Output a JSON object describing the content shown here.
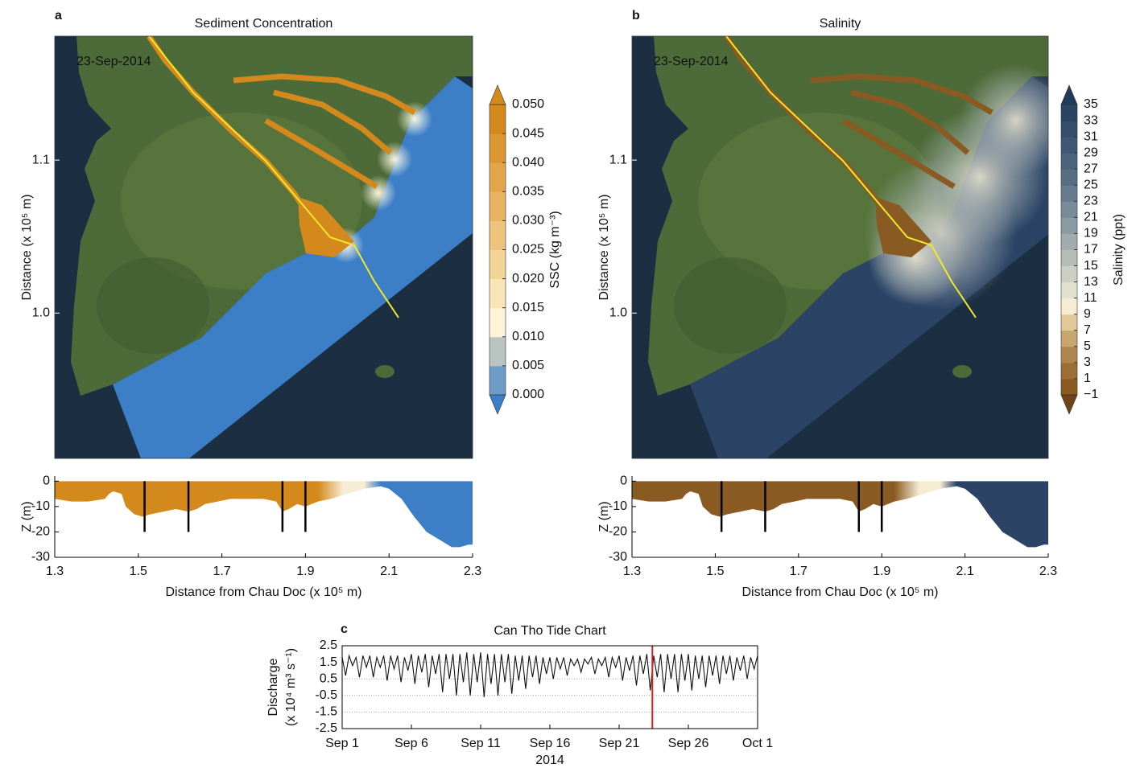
{
  "chart_data": [
    {
      "type": "map",
      "panel": "a",
      "title": "Sediment Concentration",
      "annotation": "23-Sep-2014",
      "ylabel": "Distance (x 10⁵ m)",
      "ylim": [
        0.905,
        1.181
      ],
      "yticks": [
        {
          "value": 1,
          "label": "1.0"
        },
        1.1
      ],
      "water_color": "#3d7fc7",
      "river_color": "#d4891c",
      "colorbar": {
        "label": "SSC (kg m⁻³)",
        "lim": [
          0,
          0.05
        ],
        "ticks": [
          {
            "value": 0,
            "label": "0.000"
          },
          {
            "value": 0.005,
            "label": "0.005"
          },
          {
            "value": 0.01,
            "label": "0.010"
          },
          {
            "value": 0.015,
            "label": "0.015"
          },
          {
            "value": 0.02,
            "label": "0.020"
          },
          {
            "value": 0.025,
            "label": "0.025"
          },
          {
            "value": 0.03,
            "label": "0.030"
          },
          {
            "value": 0.035,
            "label": "0.035"
          },
          {
            "value": 0.04,
            "label": "0.040"
          },
          {
            "value": 0.045,
            "label": "0.045"
          },
          {
            "value": 0.05,
            "label": "0.050"
          }
        ],
        "colors": [
          "#6e9cc9",
          "#b9c4c0",
          "#fdf3d8",
          "#f9e4b5",
          "#f3d497",
          "#eec47c",
          "#e8b460",
          "#e2a548",
          "#dc9632",
          "#d4891c"
        ],
        "extend_colors": [
          "#3d7fc7",
          "#d4891c"
        ]
      }
    },
    {
      "type": "map",
      "panel": "b",
      "title": "Salinity",
      "annotation": "23-Sep-2014",
      "ylabel": "Distance (x 10⁵ m)",
      "ylim": [
        0.905,
        1.181
      ],
      "yticks": [
        {
          "value": 1,
          "label": "1.0"
        },
        1.1
      ],
      "water_color": "#2b4466",
      "river_color": "#8a5a23",
      "colorbar": {
        "label": "Salinity (ppt)",
        "lim": [
          -1,
          35
        ],
        "ticks": [
          {
            "value": -1,
            "label": "−1"
          },
          1,
          3,
          5,
          7,
          9,
          11,
          13,
          15,
          17,
          19,
          21,
          23,
          25,
          27,
          29,
          31,
          33,
          35
        ],
        "colors": [
          "#8a5a23",
          "#9c6d35",
          "#b08650",
          "#c9a56f",
          "#e3c99a",
          "#f6ecd2",
          "#e2e0cf",
          "#cccfc4",
          "#b6bdb8",
          "#a0acad",
          "#8b9ba3",
          "#788b98",
          "#677c8e",
          "#576e84",
          "#4a627b",
          "#3e5773",
          "#334d6b",
          "#2a4464"
        ],
        "extend_colors": [
          "#6e4418",
          "#213a5a"
        ]
      }
    },
    {
      "type": "area",
      "xlabel": "Distance from Chau Doc (x 10⁵ m)",
      "ylabel": "Z (m)",
      "x": [
        1.3,
        1.34,
        1.38,
        1.42,
        1.43,
        1.44,
        1.46,
        1.47,
        1.49,
        1.51,
        1.53,
        1.56,
        1.59,
        1.62,
        1.64,
        1.66,
        1.69,
        1.72,
        1.76,
        1.8,
        1.83,
        1.845,
        1.86,
        1.88,
        1.9,
        1.93,
        1.96,
        2.0,
        2.04,
        2.08,
        2.1,
        2.13,
        2.16,
        2.19,
        2.22,
        2.25,
        2.27,
        2.29,
        2.3
      ],
      "values": [
        -7,
        -8,
        -8,
        -7,
        -5,
        -4,
        -5,
        -10,
        -13,
        -14,
        -13,
        -12,
        -11,
        -12,
        -11,
        -9,
        -8,
        -7,
        -7,
        -7,
        -8,
        -12,
        -11,
        -9,
        -10,
        -8,
        -7,
        -5,
        -3,
        -2,
        -3,
        -7,
        -14,
        -20,
        -23,
        -26,
        -26,
        -25,
        -25
      ],
      "xlim": [
        1.3,
        2.3
      ],
      "xticks": [
        1.3,
        1.5,
        1.7,
        1.9,
        2.1,
        2.3
      ],
      "ylim": [
        -30,
        2
      ],
      "yticks": [
        0,
        -10,
        -20,
        -30
      ],
      "stations": [
        1.515,
        1.62,
        1.845,
        1.9
      ],
      "station_bottom": -20,
      "colors": [
        "#d4891c",
        "#f7ecd4",
        "#3d7fc7"
      ]
    },
    {
      "type": "area",
      "xlabel": "Distance from Chau Doc (x 10⁵ m)",
      "ylabel": "Z (m)",
      "x": [
        1.3,
        1.34,
        1.38,
        1.42,
        1.43,
        1.44,
        1.46,
        1.47,
        1.49,
        1.51,
        1.53,
        1.56,
        1.59,
        1.62,
        1.64,
        1.66,
        1.69,
        1.72,
        1.76,
        1.8,
        1.83,
        1.845,
        1.86,
        1.88,
        1.9,
        1.93,
        1.96,
        2.0,
        2.04,
        2.08,
        2.1,
        2.13,
        2.16,
        2.19,
        2.22,
        2.25,
        2.27,
        2.29,
        2.3
      ],
      "values": [
        -7,
        -8,
        -8,
        -7,
        -5,
        -4,
        -5,
        -10,
        -13,
        -14,
        -13,
        -12,
        -11,
        -12,
        -11,
        -9,
        -8,
        -7,
        -7,
        -7,
        -8,
        -12,
        -11,
        -9,
        -10,
        -8,
        -7,
        -5,
        -3,
        -2,
        -3,
        -7,
        -14,
        -20,
        -23,
        -26,
        -26,
        -25,
        -25
      ],
      "xlim": [
        1.3,
        2.3
      ],
      "xticks": [
        1.3,
        1.5,
        1.7,
        1.9,
        2.1,
        2.3
      ],
      "ylim": [
        -30,
        2
      ],
      "yticks": [
        0,
        -10,
        -20,
        -30
      ],
      "stations": [
        1.515,
        1.62,
        1.845,
        1.9
      ],
      "station_bottom": -20,
      "colors": [
        "#8a5a23",
        "#f6ecd2",
        "#2b4466"
      ]
    },
    {
      "type": "line",
      "panel": "c",
      "title": "Can Tho Tide Chart",
      "xlabel": "2014",
      "ylabel": [
        "Discharge",
        "(x 10⁴ m³ s⁻¹)"
      ],
      "x": [
        1,
        1.25,
        1.5,
        1.75,
        2,
        2.25,
        2.5,
        2.75,
        3,
        3.25,
        3.5,
        3.75,
        4,
        4.25,
        4.5,
        4.75,
        5,
        5.25,
        5.5,
        5.75,
        6,
        6.25,
        6.5,
        6.75,
        7,
        7.25,
        7.5,
        7.75,
        8,
        8.25,
        8.5,
        8.75,
        9,
        9.25,
        9.5,
        9.75,
        10,
        10.25,
        10.5,
        10.75,
        11,
        11.25,
        11.5,
        11.75,
        12,
        12.25,
        12.5,
        12.75,
        13,
        13.25,
        13.5,
        13.75,
        14,
        14.25,
        14.5,
        14.75,
        15,
        15.25,
        15.5,
        15.75,
        16,
        16.25,
        16.5,
        16.75,
        17,
        17.25,
        17.5,
        17.75,
        18,
        18.25,
        18.5,
        18.75,
        19,
        19.25,
        19.5,
        19.75,
        20,
        20.25,
        20.5,
        20.75,
        21,
        21.25,
        21.5,
        21.75,
        22,
        22.25,
        22.5,
        22.75,
        23,
        23.25,
        23.5,
        23.75,
        24,
        24.25,
        24.5,
        24.75,
        25,
        25.25,
        25.5,
        25.75,
        26,
        26.25,
        26.5,
        26.75,
        27,
        27.25,
        27.5,
        27.75,
        28,
        28.25,
        28.5,
        28.75,
        29,
        29.25,
        29.5,
        29.75,
        30,
        30.25,
        30.5,
        30.75,
        31
      ],
      "values": [
        1.8,
        0.7,
        1.9,
        1.3,
        1.8,
        0.6,
        1.9,
        1.2,
        1.9,
        0.6,
        1.8,
        1.2,
        1.9,
        0.4,
        1.9,
        1.1,
        1.9,
        0.3,
        1.8,
        1.0,
        2.0,
        0.2,
        1.9,
        0.9,
        2.0,
        0.0,
        1.9,
        0.8,
        2.0,
        -0.3,
        2.0,
        0.5,
        2.0,
        -0.5,
        2.0,
        0.3,
        2.1,
        -0.5,
        2.0,
        0.3,
        2.1,
        -0.6,
        2.0,
        0.2,
        2.0,
        -0.5,
        2.0,
        0.3,
        2.0,
        -0.4,
        1.9,
        0.4,
        1.9,
        -0.1,
        1.9,
        0.6,
        1.9,
        0.2,
        1.8,
        0.8,
        1.8,
        0.5,
        1.8,
        1.1,
        1.8,
        0.7,
        1.7,
        1.3,
        1.7,
        0.9,
        1.7,
        1.4,
        1.8,
        0.8,
        1.7,
        1.3,
        1.8,
        0.6,
        1.8,
        1.2,
        1.9,
        0.4,
        1.8,
        1.0,
        1.9,
        0.1,
        1.9,
        0.8,
        2.0,
        -0.2,
        1.9,
        0.6,
        2.0,
        -0.3,
        2.0,
        0.5,
        2.0,
        -0.3,
        2.0,
        0.4,
        2.0,
        -0.2,
        1.9,
        0.5,
        1.9,
        0.0,
        1.9,
        0.7,
        1.9,
        0.2,
        1.9,
        0.8,
        1.9,
        0.4,
        1.8,
        1.0,
        1.9,
        0.5,
        1.8,
        1.1,
        1.9
      ],
      "xlim": [
        1,
        31
      ],
      "xticks": [
        {
          "value": 1,
          "label": "Sep 1"
        },
        {
          "value": 6,
          "label": "Sep 6"
        },
        {
          "value": 11,
          "label": "Sep 11"
        },
        {
          "value": 16,
          "label": "Sep 16"
        },
        {
          "value": 21,
          "label": "Sep 21"
        },
        {
          "value": 26,
          "label": "Sep 26"
        },
        {
          "value": 31,
          "label": "Oct 1"
        }
      ],
      "ylim": [
        -2.5,
        2.5
      ],
      "yticks": [
        2.5,
        1.5,
        0.5,
        -0.5,
        -1.5,
        -2.5
      ],
      "grid": true,
      "color": "#111111",
      "marker_x": 23.4,
      "marker_color": "#e0201b"
    }
  ]
}
